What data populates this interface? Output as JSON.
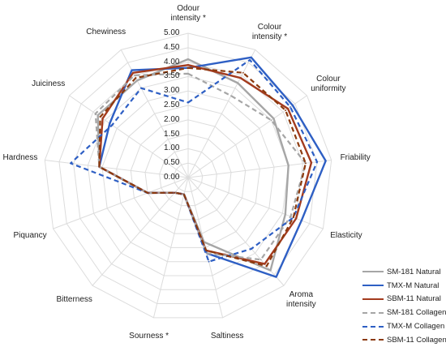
{
  "chart_data": {
    "type": "radar",
    "axes": [
      "Odour\nintensity *",
      "Colour\nintensity *",
      "Colour\nuniformity",
      "Friability",
      "Elasticity",
      "Aroma\nintensity",
      "Saltiness",
      "Sourness *",
      "Bitterness",
      "Piquancy",
      "Hardness",
      "Juiciness",
      "Chewiness"
    ],
    "rlim": [
      0,
      5
    ],
    "ticks": [
      "0.00",
      "0.50",
      "1.00",
      "1.50",
      "2.00",
      "2.50",
      "3.00",
      "3.50",
      "4.00",
      "4.50",
      "5.00"
    ],
    "grid": true,
    "legend_position": "bottom-right",
    "series": [
      {
        "name": "SM-181 Natural",
        "color": "#a6a6a6",
        "dash": "solid",
        "values": [
          4.1,
          3.7,
          3.6,
          3.5,
          3.6,
          4.3,
          2.3,
          0.6,
          0.7,
          1.5,
          3.1,
          3.8,
          3.8
        ]
      },
      {
        "name": "TMX-M Natural",
        "color": "#2e5fc4",
        "dash": "solid",
        "values": [
          3.8,
          4.7,
          4.4,
          4.8,
          4.2,
          4.6,
          2.7,
          0.6,
          0.7,
          1.5,
          3.1,
          3.3,
          4.2
        ]
      },
      {
        "name": "SBM-11 Natural",
        "color": "#a33b1e",
        "dash": "solid",
        "values": [
          3.9,
          3.9,
          4.2,
          4.3,
          4.0,
          4.0,
          2.6,
          0.6,
          0.7,
          1.5,
          3.1,
          3.6,
          4.1
        ]
      },
      {
        "name": "SM-181 Collagen",
        "color": "#a6a6a6",
        "dash": "dashed",
        "values": [
          3.6,
          3.2,
          3.5,
          4.1,
          3.8,
          3.8,
          2.7,
          0.6,
          0.7,
          1.5,
          3.1,
          3.9,
          4.0
        ]
      },
      {
        "name": "TMX-M Collagen",
        "color": "#2e5fc4",
        "dash": "dashed",
        "values": [
          2.6,
          4.6,
          4.3,
          4.5,
          3.9,
          3.3,
          3.0,
          0.6,
          0.7,
          1.5,
          4.1,
          3.2,
          3.5
        ]
      },
      {
        "name": "SBM-11 Collagen",
        "color": "#8b3a0e",
        "dash": "dashed",
        "values": [
          3.8,
          4.1,
          4.1,
          4.1,
          3.9,
          4.1,
          2.6,
          0.6,
          0.7,
          1.5,
          3.1,
          3.7,
          3.9
        ]
      }
    ]
  }
}
